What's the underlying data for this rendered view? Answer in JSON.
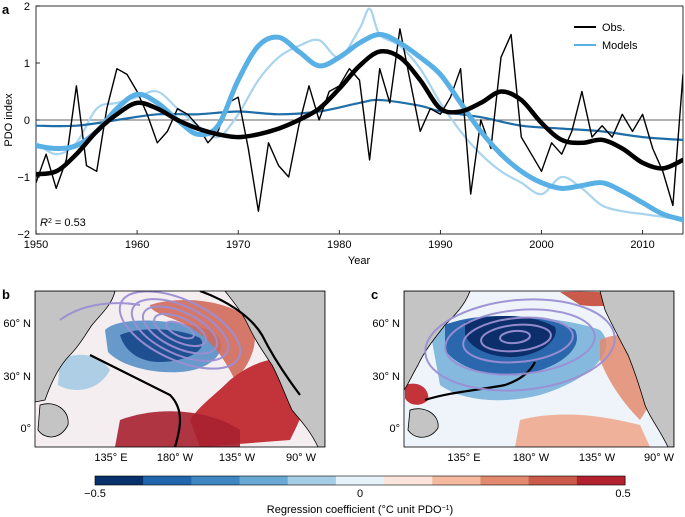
{
  "chart_data": [
    {
      "panel_label": "a",
      "type": "line",
      "xlabel": "Year",
      "ylabel": "PDO index",
      "xlim": [
        1950,
        2014
      ],
      "ylim": [
        -2,
        2
      ],
      "xticks": [
        1950,
        1960,
        1970,
        1980,
        1990,
        2000,
        2010
      ],
      "yticks": [
        -2,
        -1,
        0,
        1,
        2
      ],
      "annotation": {
        "prefix": "R",
        "sup": "2",
        "suffix": " = 0.53"
      },
      "legend": {
        "position": "top-right",
        "entries": [
          "Obs.",
          "Models"
        ]
      },
      "colors": {
        "obs": "#000000",
        "models_thin": "#a8d4ef",
        "models_thick": "#58b0e5",
        "dark": "#1f6ea8",
        "zero": "#333333"
      },
      "series": [
        {
          "name": "Obs. (annual)",
          "legend": "Obs.",
          "years": [
            1950,
            1951,
            1952,
            1953,
            1954,
            1955,
            1956,
            1957,
            1958,
            1959,
            1960,
            1961,
            1962,
            1963,
            1964,
            1965,
            1966,
            1967,
            1968,
            1969,
            1970,
            1971,
            1972,
            1973,
            1974,
            1975,
            1976,
            1977,
            1978,
            1979,
            1980,
            1981,
            1982,
            1983,
            1984,
            1985,
            1986,
            1987,
            1988,
            1989,
            1990,
            1991,
            1992,
            1993,
            1994,
            1995,
            1996,
            1997,
            1998,
            1999,
            2000,
            2001,
            2002,
            2003,
            2004,
            2005,
            2006,
            2007,
            2008,
            2009,
            2010,
            2011,
            2012,
            2013,
            2014
          ],
          "values": [
            -1.1,
            -0.6,
            -1.2,
            -0.7,
            0.6,
            -0.8,
            -0.9,
            0.2,
            0.9,
            0.8,
            0.5,
            0.1,
            -0.4,
            -0.2,
            0.2,
            0.1,
            -0.1,
            -0.4,
            -0.2,
            0.3,
            0.4,
            -0.5,
            -1.6,
            -0.4,
            -0.8,
            -1.0,
            -0.1,
            0.6,
            0.0,
            0.5,
            0.6,
            0.9,
            0.7,
            -0.7,
            0.9,
            0.3,
            1.6,
            0.7,
            -0.2,
            0.2,
            0.1,
            0.4,
            0.9,
            -1.3,
            0.0,
            -0.5,
            1.1,
            1.5,
            -0.3,
            -0.6,
            -0.9,
            -0.4,
            -0.6,
            -0.2,
            0.5,
            -0.3,
            -0.1,
            -0.3,
            0.1,
            -0.2,
            0.1,
            -0.5,
            -0.9,
            -1.5,
            0.8
          ]
        },
        {
          "name": "Obs. (smoothed)",
          "years": [
            1950,
            1952,
            1954,
            1956,
            1958,
            1960,
            1962,
            1964,
            1966,
            1968,
            1970,
            1972,
            1974,
            1976,
            1978,
            1980,
            1982,
            1984,
            1986,
            1988,
            1990,
            1992,
            1994,
            1996,
            1998,
            2000,
            2002,
            2004,
            2006,
            2008,
            2010,
            2012,
            2014
          ],
          "values": [
            -0.95,
            -0.9,
            -0.6,
            -0.2,
            0.1,
            0.3,
            0.2,
            0.0,
            -0.15,
            -0.25,
            -0.3,
            -0.25,
            -0.15,
            0.0,
            0.2,
            0.55,
            0.95,
            1.2,
            1.1,
            0.7,
            0.2,
            0.15,
            0.3,
            0.5,
            0.35,
            -0.05,
            -0.35,
            -0.4,
            -0.35,
            -0.5,
            -0.75,
            -0.85,
            -0.7
          ]
        },
        {
          "name": "Models (annual)",
          "legend": "Models",
          "years": [
            1950,
            1952,
            1954,
            1956,
            1958,
            1960,
            1962,
            1964,
            1966,
            1968,
            1970,
            1972,
            1974,
            1976,
            1978,
            1980,
            1982,
            1983,
            1984,
            1986,
            1988,
            1990,
            1992,
            1994,
            1996,
            1998,
            2000,
            2002,
            2004,
            2006,
            2008,
            2010,
            2012,
            2014
          ],
          "values": [
            -0.4,
            -0.6,
            -0.4,
            0.2,
            0.3,
            0.4,
            0.5,
            0.2,
            -0.1,
            -0.3,
            0.1,
            0.7,
            1.1,
            1.3,
            1.4,
            1.1,
            1.6,
            1.95,
            1.5,
            1.3,
            0.9,
            0.3,
            -0.2,
            -0.6,
            -0.9,
            -1.1,
            -1.3,
            -1.0,
            -1.2,
            -1.5,
            -1.6,
            -1.65,
            -1.7,
            -1.75
          ]
        },
        {
          "name": "Models (smoothed)",
          "years": [
            1950,
            1952,
            1954,
            1956,
            1958,
            1960,
            1962,
            1964,
            1966,
            1968,
            1970,
            1972,
            1974,
            1976,
            1978,
            1980,
            1982,
            1984,
            1986,
            1988,
            1990,
            1992,
            1994,
            1996,
            1998,
            2000,
            2002,
            2004,
            2006,
            2008,
            2010,
            2012,
            2014
          ],
          "values": [
            -0.45,
            -0.5,
            -0.45,
            -0.2,
            0.2,
            0.45,
            0.3,
            0.0,
            -0.25,
            -0.1,
            0.7,
            1.3,
            1.45,
            1.2,
            0.95,
            1.1,
            1.35,
            1.5,
            1.35,
            1.1,
            0.8,
            0.3,
            -0.2,
            -0.6,
            -0.9,
            -1.1,
            -1.2,
            -1.15,
            -1.1,
            -1.25,
            -1.45,
            -1.65,
            -1.75
          ]
        },
        {
          "name": "Ensemble mean",
          "years": [
            1950,
            1954,
            1958,
            1962,
            1966,
            1970,
            1974,
            1978,
            1982,
            1984,
            1988,
            1990,
            1994,
            1998,
            2002,
            2006,
            2010,
            2014
          ],
          "values": [
            -0.1,
            -0.1,
            0.0,
            0.1,
            0.1,
            0.15,
            0.1,
            0.15,
            0.3,
            0.35,
            0.25,
            0.15,
            0.05,
            -0.1,
            -0.15,
            -0.2,
            -0.3,
            -0.35
          ]
        }
      ]
    },
    {
      "panel_label": "b",
      "type": "heatmap",
      "lat_labels": [
        "60° N",
        "30° N",
        "0°"
      ],
      "lon_labels": [
        "135° E",
        "180° W",
        "135° W",
        "90° W"
      ]
    },
    {
      "panel_label": "c",
      "type": "heatmap",
      "lat_labels": [
        "60° N",
        "30° N",
        "0°"
      ],
      "lon_labels": [
        "135° E",
        "180° W",
        "135° W",
        "90° W"
      ]
    }
  ],
  "colorbar": {
    "min_label": "−0.5",
    "mid_label": "0",
    "max_label": "0.5",
    "title": "Regression coefficient (°C unit PDO",
    "title_sup": "−1",
    "title_close": ")",
    "colors": [
      "#08306b",
      "#2166ac",
      "#3e86c1",
      "#6aa9d5",
      "#a6cde6",
      "#e6f2f9",
      "#fbe5da",
      "#f4b99f",
      "#e38a6e",
      "#ca5a4a",
      "#b2222e"
    ]
  },
  "colors": {
    "land": "#c4c4c4",
    "contour": "#9b8fd4",
    "coast": "#000000"
  }
}
